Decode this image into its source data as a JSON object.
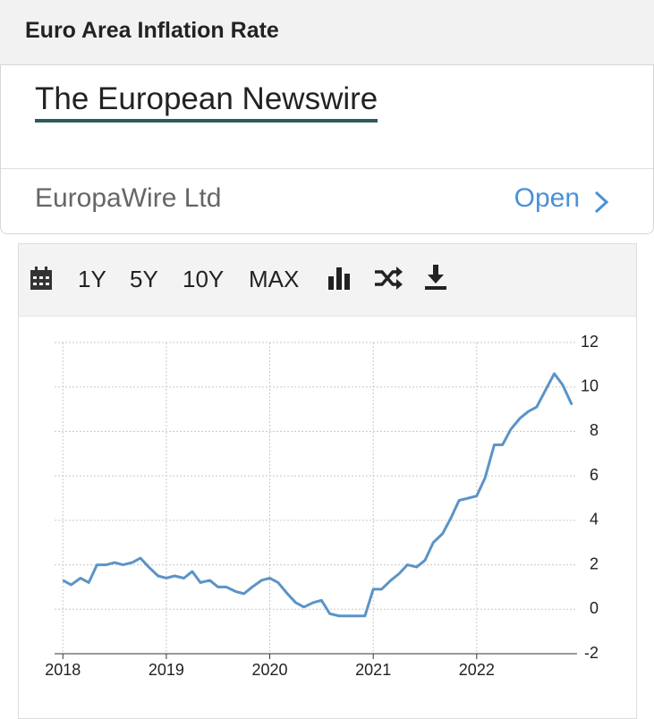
{
  "header": {
    "title": "Euro Area Inflation Rate"
  },
  "ad": {
    "title": "The European Newswire",
    "advertiser": "EuropaWire Ltd",
    "button": "Open"
  },
  "toolbar": {
    "ranges": [
      "1Y",
      "5Y",
      "10Y",
      "MAX"
    ]
  },
  "chart_data": {
    "type": "line",
    "color": "#5b93c7",
    "grid": true,
    "x": [
      2018,
      2018.08,
      2018.17,
      2018.25,
      2018.33,
      2018.42,
      2018.5,
      2018.58,
      2018.67,
      2018.75,
      2018.83,
      2018.92,
      2019,
      2019.08,
      2019.17,
      2019.25,
      2019.33,
      2019.42,
      2019.5,
      2019.58,
      2019.67,
      2019.75,
      2019.83,
      2019.92,
      2020,
      2020.08,
      2020.17,
      2020.25,
      2020.33,
      2020.42,
      2020.5,
      2020.58,
      2020.67,
      2020.75,
      2020.83,
      2020.92,
      2021,
      2021.08,
      2021.17,
      2021.25,
      2021.33,
      2021.42,
      2021.5,
      2021.58,
      2021.67,
      2021.75,
      2021.83,
      2021.92,
      2022,
      2022.08,
      2022.17,
      2022.25,
      2022.33,
      2022.42,
      2022.5,
      2022.58,
      2022.67,
      2022.75,
      2022.83,
      2022.92
    ],
    "values": [
      1.3,
      1.1,
      1.4,
      1.2,
      2.0,
      2.0,
      2.1,
      2.0,
      2.1,
      2.3,
      1.9,
      1.5,
      1.4,
      1.5,
      1.4,
      1.7,
      1.2,
      1.3,
      1.0,
      1.0,
      0.8,
      0.7,
      1.0,
      1.3,
      1.4,
      1.2,
      0.7,
      0.3,
      0.1,
      0.3,
      0.4,
      -0.2,
      -0.3,
      -0.3,
      -0.3,
      -0.3,
      0.9,
      0.9,
      1.3,
      1.6,
      2.0,
      1.9,
      2.2,
      3.0,
      3.4,
      4.1,
      4.9,
      5.0,
      5.1,
      5.9,
      7.4,
      7.4,
      8.1,
      8.6,
      8.9,
      9.1,
      9.9,
      10.6,
      10.1,
      9.2
    ],
    "xlim": [
      2017.92,
      2022.97
    ],
    "xticks": [
      2018,
      2019,
      2020,
      2021,
      2022
    ],
    "ylim": [
      -2,
      12
    ],
    "yticks": [
      -2,
      0,
      2,
      4,
      6,
      8,
      10,
      12
    ]
  }
}
